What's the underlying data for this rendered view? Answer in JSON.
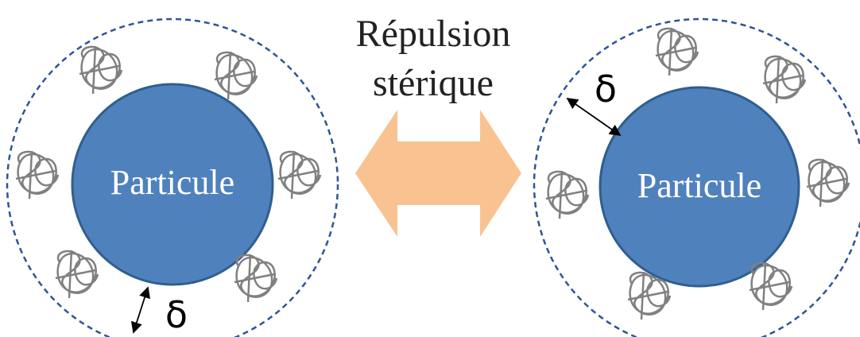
{
  "title_line1": "Répulsion",
  "title_line2": "stérique",
  "particles": [
    {
      "label": "Particule",
      "delta": "δ"
    },
    {
      "label": "Particule",
      "delta": "δ"
    }
  ]
}
